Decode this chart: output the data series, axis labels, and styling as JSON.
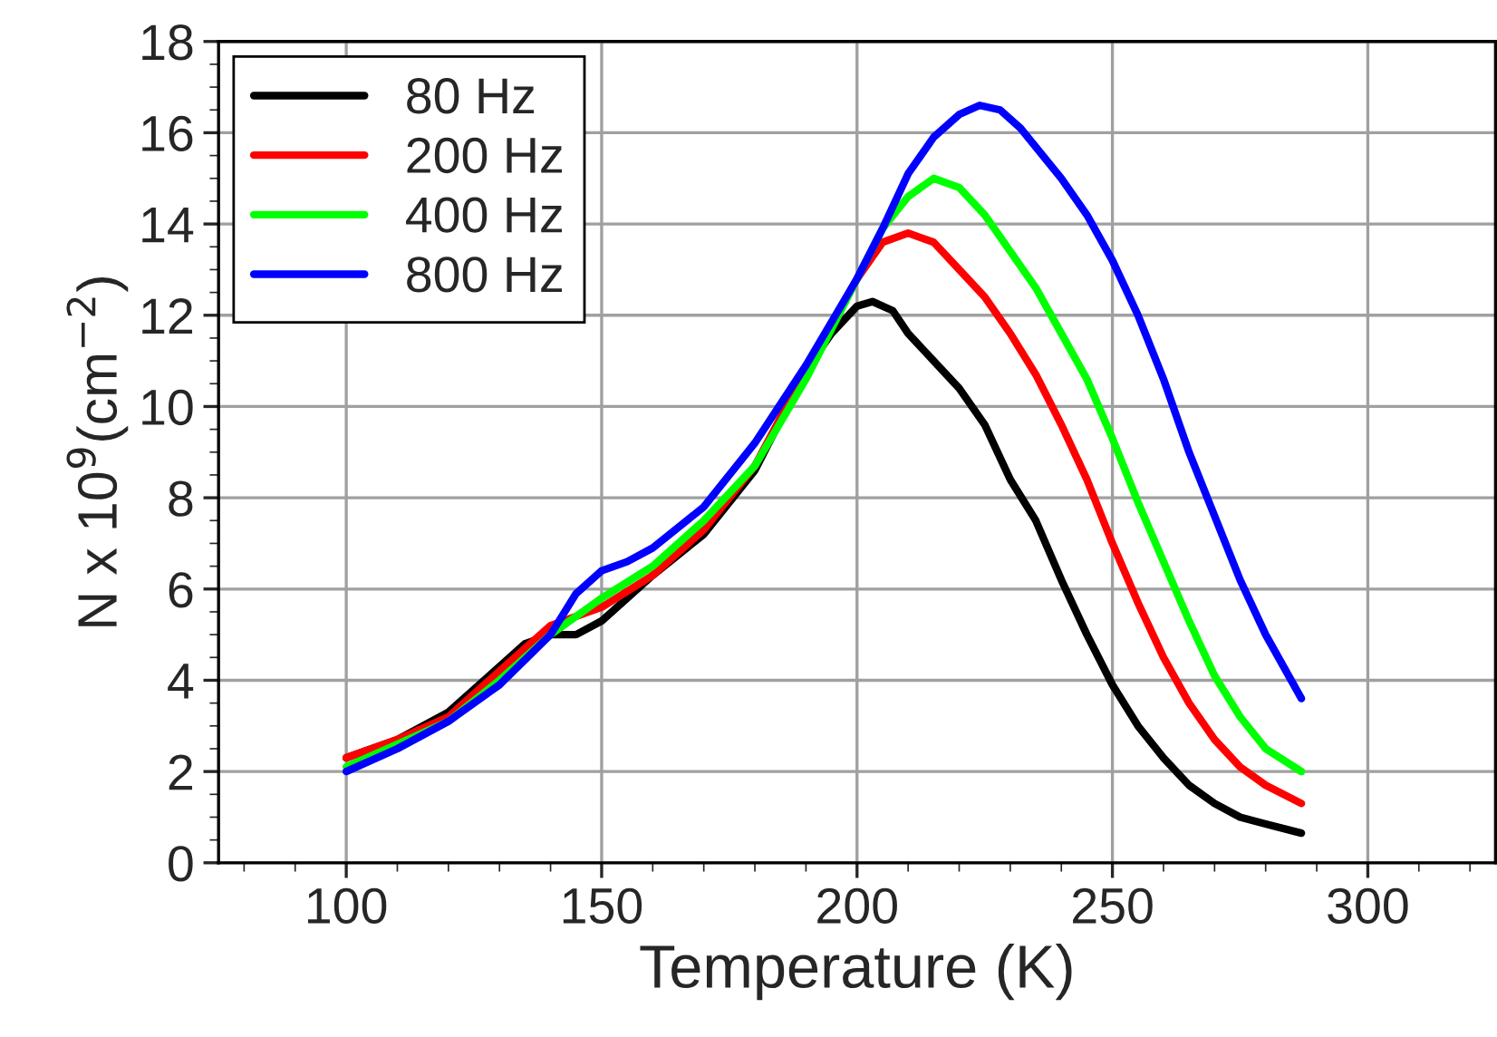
{
  "chart_data": {
    "type": "line",
    "xlabel": "Temperature (K)",
    "ylabel": "N x 10$^{9}$(cm$^{−2}$)",
    "xlim": [
      75,
      325
    ],
    "xticks": [
      100,
      150,
      200,
      250,
      300
    ],
    "ylim": [
      0,
      18
    ],
    "yticks": [
      0,
      2,
      4,
      6,
      8,
      10,
      12,
      14,
      16,
      18
    ],
    "grid": true,
    "legend": "top left",
    "marker": "none",
    "line_style": "solid",
    "series": [
      {
        "name": "80 Hz",
        "color": "#000000",
        "x": [
          100,
          110,
          120,
          130,
          135,
          140,
          145,
          150,
          155,
          160,
          170,
          180,
          185,
          190,
          195,
          200,
          203,
          207,
          210,
          215,
          220,
          225,
          230,
          235,
          240,
          245,
          250,
          255,
          260,
          265,
          270,
          275,
          280,
          287
        ],
        "values": [
          2.3,
          2.7,
          3.3,
          4.3,
          4.8,
          5.0,
          5.0,
          5.3,
          5.8,
          6.3,
          7.2,
          8.6,
          9.7,
          10.8,
          11.6,
          12.2,
          12.3,
          12.1,
          11.6,
          11.0,
          10.4,
          9.6,
          8.4,
          7.5,
          6.2,
          5.0,
          3.9,
          3.0,
          2.3,
          1.7,
          1.3,
          1.0,
          0.85,
          0.65
        ]
      },
      {
        "name": "200 Hz",
        "color": "#ff0000",
        "x": [
          100,
          110,
          120,
          130,
          140,
          150,
          160,
          170,
          180,
          190,
          200,
          205,
          210,
          215,
          220,
          225,
          230,
          235,
          240,
          245,
          250,
          255,
          260,
          265,
          270,
          275,
          280,
          287
        ],
        "values": [
          2.3,
          2.7,
          3.2,
          4.2,
          5.2,
          5.6,
          6.3,
          7.3,
          8.7,
          10.8,
          12.8,
          13.6,
          13.8,
          13.6,
          13.0,
          12.4,
          11.6,
          10.7,
          9.6,
          8.4,
          7.0,
          5.7,
          4.5,
          3.5,
          2.7,
          2.1,
          1.7,
          1.3
        ]
      },
      {
        "name": "400 Hz",
        "color": "#00ff00",
        "x": [
          100,
          110,
          120,
          130,
          140,
          150,
          160,
          170,
          180,
          190,
          200,
          205,
          210,
          215,
          220,
          225,
          230,
          235,
          240,
          245,
          250,
          255,
          260,
          265,
          270,
          275,
          280,
          287
        ],
        "values": [
          2.1,
          2.6,
          3.1,
          4.0,
          5.0,
          5.8,
          6.5,
          7.5,
          8.7,
          10.6,
          12.8,
          13.9,
          14.6,
          15.0,
          14.8,
          14.2,
          13.4,
          12.6,
          11.6,
          10.6,
          9.3,
          7.9,
          6.6,
          5.3,
          4.1,
          3.2,
          2.5,
          2.0
        ]
      },
      {
        "name": "800 Hz",
        "color": "#0000ff",
        "x": [
          100,
          110,
          120,
          130,
          140,
          145,
          150,
          155,
          160,
          170,
          180,
          190,
          200,
          205,
          210,
          215,
          220,
          224,
          228,
          232,
          240,
          245,
          250,
          255,
          260,
          265,
          270,
          275,
          280,
          287
        ],
        "values": [
          2.0,
          2.5,
          3.1,
          3.9,
          5.0,
          5.9,
          6.4,
          6.6,
          6.9,
          7.8,
          9.2,
          10.9,
          12.8,
          13.9,
          15.1,
          15.9,
          16.4,
          16.6,
          16.5,
          16.1,
          15.0,
          14.2,
          13.2,
          12.0,
          10.6,
          9.0,
          7.6,
          6.2,
          5.0,
          3.6
        ]
      }
    ]
  }
}
